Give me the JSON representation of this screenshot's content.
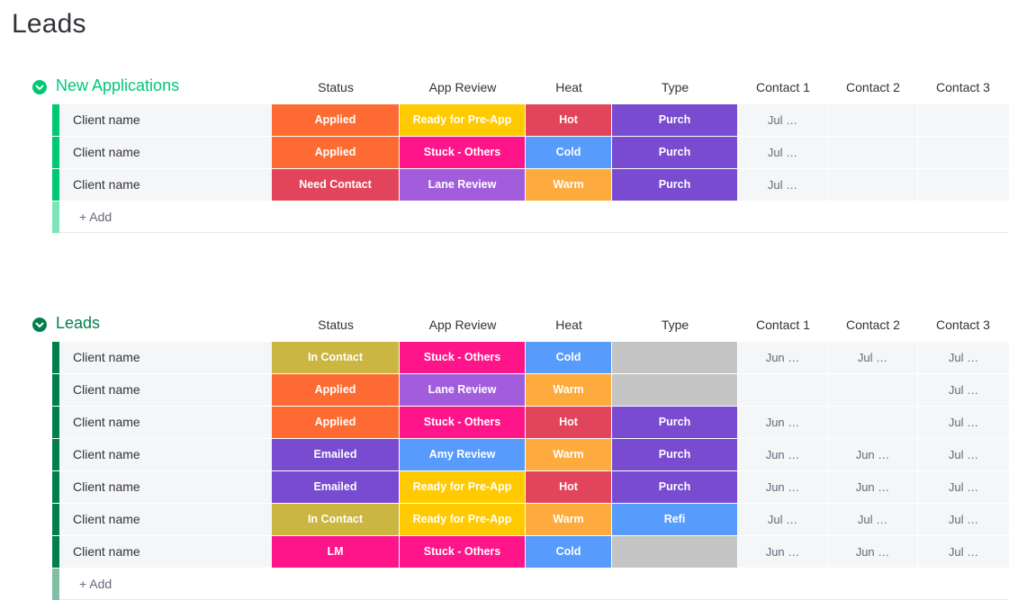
{
  "page": {
    "title": "Leads"
  },
  "columns": [
    "Status",
    "App Review",
    "Heat",
    "Type",
    "Contact 1",
    "Contact 2",
    "Contact 3"
  ],
  "colors": {
    "Applied": "#fd6a32",
    "Need Contact": "#e2445c",
    "In Contact": "#cab641",
    "Emailed": "#784bd1",
    "LM": "#ff158a",
    "Ready for Pre-App": "#ffcb00",
    "Stuck - Others": "#ff158a",
    "Lane Review": "#a25ddc",
    "Amy Review": "#579bfc",
    "Hot": "#e2445c",
    "Cold": "#579bfc",
    "Warm": "#fdab3d",
    "Purch": "#784bd1",
    "Refi": "#579bfc",
    "": "#c4c4c4"
  },
  "groups": [
    {
      "title": "New Applications",
      "color": "#00c875",
      "icon": "chevron-down-icon",
      "add_label": "+ Add",
      "rows": [
        {
          "name": "Client name",
          "status": "Applied",
          "review": "Ready for Pre-App",
          "heat": "Hot",
          "type": "Purch",
          "c1": "Jul …",
          "c2": "",
          "c3": ""
        },
        {
          "name": "Client name",
          "status": "Applied",
          "review": "Stuck - Others",
          "heat": "Cold",
          "type": "Purch",
          "c1": "Jul …",
          "c2": "",
          "c3": ""
        },
        {
          "name": "Client name",
          "status": "Need Contact",
          "review": "Lane Review",
          "heat": "Warm",
          "type": "Purch",
          "c1": "Jul …",
          "c2": "",
          "c3": ""
        }
      ]
    },
    {
      "title": "Leads",
      "color": "#037f4c",
      "icon": "chevron-down-icon",
      "add_label": "+ Add",
      "rows": [
        {
          "name": "Client name",
          "status": "In Contact",
          "review": "Stuck - Others",
          "heat": "Cold",
          "type": "",
          "c1": "Jun …",
          "c2": "Jul …",
          "c3": "Jul …"
        },
        {
          "name": "Client name",
          "status": "Applied",
          "review": "Lane Review",
          "heat": "Warm",
          "type": "",
          "c1": "",
          "c2": "",
          "c3": "Jul …"
        },
        {
          "name": "Client name",
          "status": "Applied",
          "review": "Stuck - Others",
          "heat": "Hot",
          "type": "Purch",
          "c1": "Jun …",
          "c2": "",
          "c3": "Jul …"
        },
        {
          "name": "Client name",
          "status": "Emailed",
          "review": "Amy Review",
          "heat": "Warm",
          "type": "Purch",
          "c1": "Jun …",
          "c2": "Jun …",
          "c3": "Jul …"
        },
        {
          "name": "Client name",
          "status": "Emailed",
          "review": "Ready for Pre-App",
          "heat": "Hot",
          "type": "Purch",
          "c1": "Jun …",
          "c2": "Jun …",
          "c3": "Jul …"
        },
        {
          "name": "Client name",
          "status": "In Contact",
          "review": "Ready for Pre-App",
          "heat": "Warm",
          "type": "Refi",
          "c1": "Jul …",
          "c2": "Jul …",
          "c3": "Jul …"
        },
        {
          "name": "Client name",
          "status": "LM",
          "review": "Stuck - Others",
          "heat": "Cold",
          "type": "",
          "c1": "Jun …",
          "c2": "Jun …",
          "c3": "Jul …"
        }
      ]
    }
  ]
}
